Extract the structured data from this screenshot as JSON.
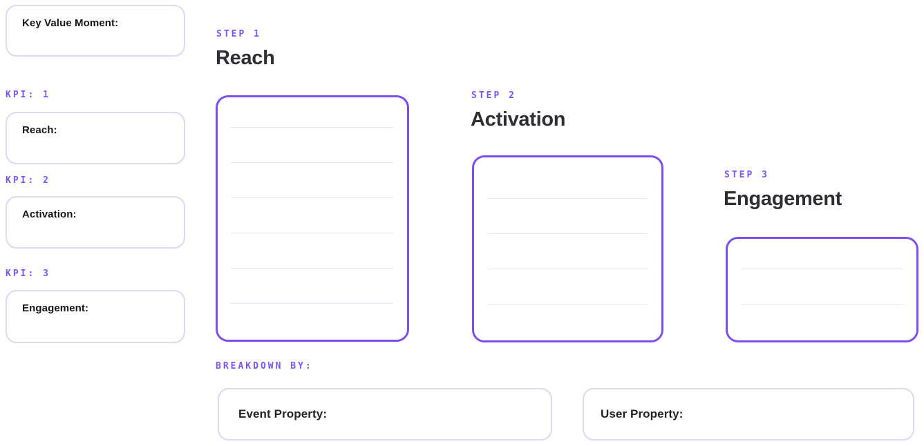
{
  "colors": {
    "accent_text": "#7B55F2",
    "accent_border": "#7A4FF0",
    "light_border": "#DCD8F6",
    "rule_line": "#E6E3F9",
    "heading_text": "#2E2F33",
    "label_text": "#15161A"
  },
  "key_value_moment": {
    "label": "Key Value Moment:"
  },
  "kpis": [
    {
      "tag": "KPI: 1",
      "label": "Reach:"
    },
    {
      "tag": "KPI: 2",
      "label": "Activation:"
    },
    {
      "tag": "KPI: 3",
      "label": "Engagement:"
    }
  ],
  "steps": [
    {
      "tag": "STEP 1",
      "title": "Reach",
      "ruled_lines": 6
    },
    {
      "tag": "STEP 2",
      "title": "Activation",
      "ruled_lines": 4
    },
    {
      "tag": "STEP 3",
      "title": "Engagement",
      "ruled_lines": 2
    }
  ],
  "breakdown": {
    "tag": "BREAKDOWN BY:",
    "fields": [
      {
        "label": "Event Property:"
      },
      {
        "label": "User Property:"
      }
    ]
  }
}
